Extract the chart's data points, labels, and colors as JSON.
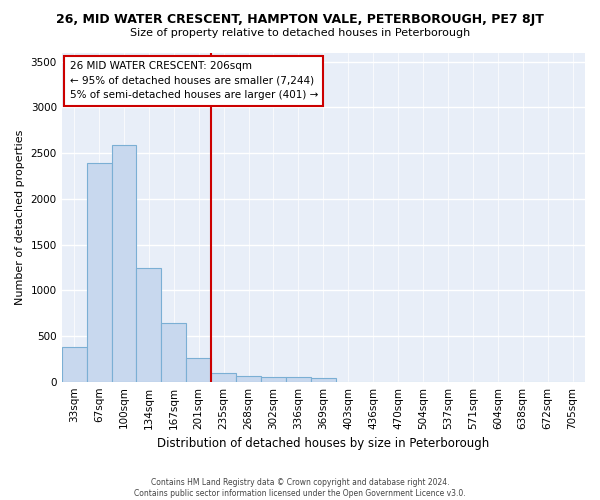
{
  "title": "26, MID WATER CRESCENT, HAMPTON VALE, PETERBOROUGH, PE7 8JT",
  "subtitle": "Size of property relative to detached houses in Peterborough",
  "xlabel": "Distribution of detached houses by size in Peterborough",
  "ylabel": "Number of detached properties",
  "categories": [
    "33sqm",
    "67sqm",
    "100sqm",
    "134sqm",
    "167sqm",
    "201sqm",
    "235sqm",
    "268sqm",
    "302sqm",
    "336sqm",
    "369sqm",
    "403sqm",
    "436sqm",
    "470sqm",
    "504sqm",
    "537sqm",
    "571sqm",
    "604sqm",
    "638sqm",
    "672sqm",
    "705sqm"
  ],
  "values": [
    380,
    2390,
    2590,
    1240,
    640,
    260,
    100,
    60,
    55,
    50,
    35,
    0,
    0,
    0,
    0,
    0,
    0,
    0,
    0,
    0,
    0
  ],
  "bar_color": "#c8d8ee",
  "bar_edge_color": "#7bafd4",
  "vline_x": 5.5,
  "vline_color": "#cc0000",
  "annotation_lines": [
    "26 MID WATER CRESCENT: 206sqm",
    "← 95% of detached houses are smaller (7,244)",
    "5% of semi-detached houses are larger (401) →"
  ],
  "annotation_box_color": "#cc0000",
  "ylim": [
    0,
    3600
  ],
  "yticks": [
    0,
    500,
    1000,
    1500,
    2000,
    2500,
    3000,
    3500
  ],
  "background_color": "#e8eef8",
  "footer_line1": "Contains HM Land Registry data © Crown copyright and database right 2024.",
  "footer_line2": "Contains public sector information licensed under the Open Government Licence v3.0."
}
